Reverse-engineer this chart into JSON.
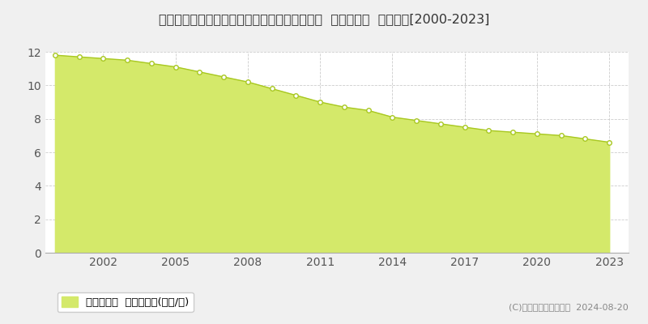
{
  "title": "岩手県西磐井郡平泉町平泉字志羅山１３３番３  基準地価格  地価推移[2000-2023]",
  "years": [
    2000,
    2001,
    2002,
    2003,
    2004,
    2005,
    2006,
    2007,
    2008,
    2009,
    2010,
    2011,
    2012,
    2013,
    2014,
    2015,
    2016,
    2017,
    2018,
    2019,
    2020,
    2021,
    2022,
    2023
  ],
  "values": [
    11.8,
    11.7,
    11.6,
    11.5,
    11.3,
    11.1,
    10.8,
    10.5,
    10.2,
    9.8,
    9.4,
    9.0,
    8.7,
    8.5,
    8.1,
    7.9,
    7.7,
    7.5,
    7.3,
    7.2,
    7.1,
    7.0,
    6.8,
    6.6
  ],
  "fill_color": "#d4e96a",
  "line_color": "#a8c820",
  "marker_color": "#ffffff",
  "marker_edge_color": "#a8c820",
  "background_color": "#f0f0f0",
  "plot_bg_color": "#ffffff",
  "grid_color": "#cccccc",
  "ylim": [
    0,
    12
  ],
  "yticks": [
    0,
    2,
    4,
    6,
    8,
    10,
    12
  ],
  "xticks": [
    2002,
    2005,
    2008,
    2011,
    2014,
    2017,
    2020,
    2023
  ],
  "legend_label": "基準地価格  平均坪単価(万円/坪)",
  "copyright_text": "(C)土地価格ドットコム  2024-08-20",
  "title_fontsize": 11.5,
  "tick_fontsize": 10,
  "legend_fontsize": 9.5
}
